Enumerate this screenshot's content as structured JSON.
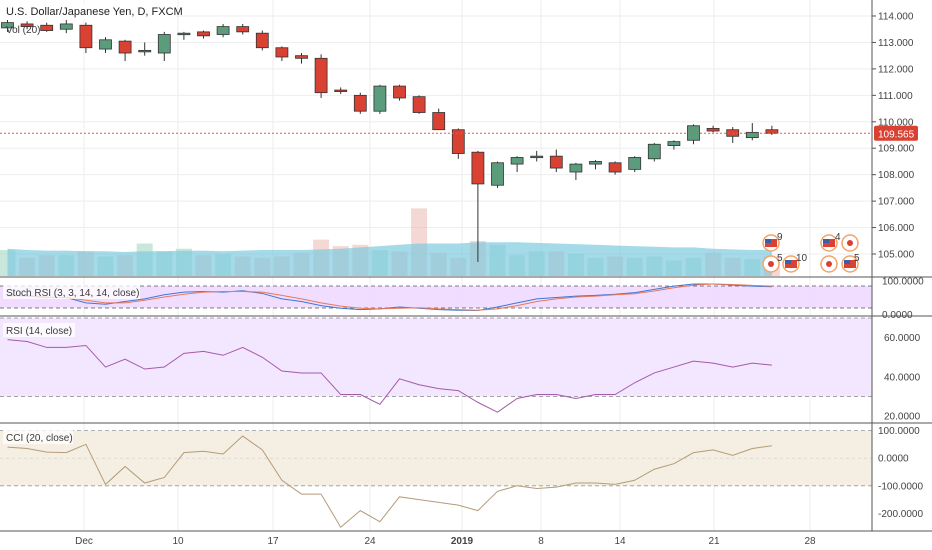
{
  "header": {
    "title": "U.S. Dollar/Japanese Yen, D, FXCM",
    "volume_label": "Vol (20)"
  },
  "price_tag": "109.565",
  "indicators": {
    "stoch_label": "Stoch RSI (3, 3, 14, 14, close)",
    "rsi_label": "RSI (14, close)",
    "cci_label": "CCI (20, close)"
  },
  "events": {
    "badge_9": "9",
    "badge_5a": "5",
    "badge_10": "10",
    "badge_4": "4",
    "badge_5b": "5"
  },
  "colors": {
    "up": "#5b9c7d",
    "down": "#d94133",
    "price_line": "#e05b4b",
    "volume": "#7fcbe0",
    "stoch_bg": "#efd9ff",
    "rsi_bg": "#f3e6ff",
    "cci_bg": "#f4efe2"
  },
  "chart_data": [
    {
      "type": "candlestick",
      "title": "U.S. Dollar/Japanese Yen, D, FXCM",
      "ylim": [
        104.3,
        114.4
      ],
      "y_ticks": [
        "114.000",
        "113.000",
        "112.000",
        "111.000",
        "110.000",
        "109.000",
        "108.000",
        "107.000",
        "106.000",
        "105.000"
      ],
      "x_ticks": [
        "Dec",
        "10",
        "17",
        "24",
        "2019",
        "8",
        "14",
        "21",
        "28"
      ],
      "last_price": 109.565,
      "candles": [
        {
          "o": 113.55,
          "h": 113.85,
          "l": 113.4,
          "c": 113.75
        },
        {
          "o": 113.7,
          "h": 113.8,
          "l": 113.5,
          "c": 113.6
        },
        {
          "o": 113.65,
          "h": 113.75,
          "l": 113.4,
          "c": 113.45
        },
        {
          "o": 113.5,
          "h": 113.85,
          "l": 113.35,
          "c": 113.7
        },
        {
          "o": 113.65,
          "h": 113.75,
          "l": 112.6,
          "c": 112.8
        },
        {
          "o": 112.75,
          "h": 113.2,
          "l": 112.6,
          "c": 113.1
        },
        {
          "o": 113.05,
          "h": 113.1,
          "l": 112.3,
          "c": 112.6
        },
        {
          "o": 112.65,
          "h": 113.0,
          "l": 112.5,
          "c": 112.7
        },
        {
          "o": 112.6,
          "h": 113.4,
          "l": 112.3,
          "c": 113.3
        },
        {
          "o": 113.3,
          "h": 113.4,
          "l": 113.1,
          "c": 113.35
        },
        {
          "o": 113.4,
          "h": 113.45,
          "l": 113.15,
          "c": 113.25
        },
        {
          "o": 113.3,
          "h": 113.7,
          "l": 113.2,
          "c": 113.6
        },
        {
          "o": 113.6,
          "h": 113.7,
          "l": 113.3,
          "c": 113.4
        },
        {
          "o": 113.35,
          "h": 113.45,
          "l": 112.7,
          "c": 112.8
        },
        {
          "o": 112.8,
          "h": 112.85,
          "l": 112.3,
          "c": 112.45
        },
        {
          "o": 112.5,
          "h": 112.6,
          "l": 112.2,
          "c": 112.4
        },
        {
          "o": 112.4,
          "h": 112.55,
          "l": 110.9,
          "c": 111.1
        },
        {
          "o": 111.2,
          "h": 111.3,
          "l": 111.05,
          "c": 111.15
        },
        {
          "o": 111.0,
          "h": 111.1,
          "l": 110.3,
          "c": 110.4
        },
        {
          "o": 110.4,
          "h": 111.4,
          "l": 110.3,
          "c": 111.35
        },
        {
          "o": 111.35,
          "h": 111.4,
          "l": 110.8,
          "c": 110.9
        },
        {
          "o": 110.95,
          "h": 111.0,
          "l": 110.3,
          "c": 110.35
        },
        {
          "o": 110.35,
          "h": 110.5,
          "l": 109.7,
          "c": 109.7
        },
        {
          "o": 109.7,
          "h": 109.75,
          "l": 108.6,
          "c": 108.8
        },
        {
          "o": 108.85,
          "h": 108.9,
          "l": 104.7,
          "c": 107.65
        },
        {
          "o": 107.6,
          "h": 108.5,
          "l": 107.5,
          "c": 108.45
        },
        {
          "o": 108.4,
          "h": 108.7,
          "l": 108.1,
          "c": 108.65
        },
        {
          "o": 108.65,
          "h": 108.9,
          "l": 108.5,
          "c": 108.7
        },
        {
          "o": 108.7,
          "h": 108.95,
          "l": 108.1,
          "c": 108.25
        },
        {
          "o": 108.1,
          "h": 108.45,
          "l": 107.8,
          "c": 108.4
        },
        {
          "o": 108.4,
          "h": 108.55,
          "l": 108.2,
          "c": 108.5
        },
        {
          "o": 108.45,
          "h": 108.5,
          "l": 108.0,
          "c": 108.1
        },
        {
          "o": 108.2,
          "h": 108.7,
          "l": 108.1,
          "c": 108.65
        },
        {
          "o": 108.6,
          "h": 109.2,
          "l": 108.5,
          "c": 109.15
        },
        {
          "o": 109.1,
          "h": 109.3,
          "l": 108.95,
          "c": 109.25
        },
        {
          "o": 109.3,
          "h": 109.9,
          "l": 109.15,
          "c": 109.85
        },
        {
          "o": 109.75,
          "h": 109.85,
          "l": 109.6,
          "c": 109.65
        },
        {
          "o": 109.7,
          "h": 109.8,
          "l": 109.2,
          "c": 109.45
        },
        {
          "o": 109.4,
          "h": 109.95,
          "l": 109.3,
          "c": 109.6
        },
        {
          "o": 109.7,
          "h": 109.85,
          "l": 109.5,
          "c": 109.565
        }
      ],
      "volume": [
        2.0,
        1.4,
        1.6,
        1.6,
        1.9,
        1.5,
        1.6,
        2.5,
        1.9,
        2.1,
        1.6,
        1.7,
        1.5,
        1.4,
        1.5,
        1.8,
        2.8,
        2.3,
        2.4,
        2.0,
        1.9,
        5.2,
        1.8,
        1.4,
        2.7,
        2.4,
        1.6,
        1.9,
        1.9,
        1.7,
        1.4,
        1.5,
        1.4,
        1.5,
        1.2,
        1.4,
        1.8,
        1.4,
        1.3,
        1.5
      ],
      "volume_ma": [
        2.1,
        2.0,
        1.95,
        1.95,
        1.9,
        1.9,
        1.85,
        1.9,
        1.9,
        1.95,
        1.95,
        1.9,
        1.95,
        2.0,
        2.0,
        2.0,
        2.05,
        2.1,
        2.2,
        2.3,
        2.4,
        2.5,
        2.5,
        2.5,
        2.6,
        2.6,
        2.6,
        2.55,
        2.5,
        2.45,
        2.4,
        2.35,
        2.3,
        2.25,
        2.2,
        2.2,
        2.1,
        2.05,
        2.0,
        2.0
      ]
    },
    {
      "type": "line",
      "title": "Stoch RSI (3, 3, 14, 14, close)",
      "ylim": [
        0,
        100
      ],
      "y_ticks": [
        "100.0000",
        "0.0000"
      ],
      "series": [
        {
          "values": [
            60,
            55,
            50,
            50,
            30,
            25,
            35,
            45,
            60,
            70,
            72,
            70,
            75,
            65,
            45,
            35,
            20,
            10,
            5,
            8,
            15,
            10,
            5,
            3,
            2,
            15,
            30,
            45,
            50,
            55,
            58,
            62,
            68,
            80,
            92,
            100,
            100,
            96,
            92,
            90
          ]
        },
        {
          "values": [
            55,
            58,
            52,
            50,
            40,
            30,
            30,
            40,
            52,
            62,
            70,
            72,
            72,
            70,
            58,
            45,
            30,
            18,
            10,
            8,
            10,
            12,
            8,
            5,
            3,
            8,
            20,
            35,
            45,
            52,
            55,
            60,
            64,
            74,
            86,
            96,
            100,
            98,
            95,
            92
          ]
        }
      ]
    },
    {
      "type": "line",
      "title": "RSI (14, close)",
      "ylim": [
        17,
        70
      ],
      "y_ticks": [
        "60.0000",
        "40.0000",
        "20.0000"
      ],
      "series": [
        {
          "values": [
            59,
            58,
            55,
            55,
            56,
            45,
            49,
            44,
            45,
            52,
            53,
            51,
            55,
            50,
            43,
            42,
            42,
            31,
            31,
            26,
            39,
            36,
            34,
            33,
            27,
            22,
            29,
            31,
            31,
            29,
            31,
            31,
            37,
            42,
            45,
            48,
            47,
            45,
            47,
            46
          ]
        }
      ]
    },
    {
      "type": "line",
      "title": "CCI (20, close)",
      "ylim": [
        -260,
        120
      ],
      "y_ticks": [
        "100.0000",
        "0.0000",
        "-100.0000",
        "-200.0000"
      ],
      "series": [
        {
          "values": [
            40,
            35,
            22,
            20,
            50,
            -95,
            -30,
            -90,
            -70,
            20,
            25,
            15,
            80,
            30,
            -80,
            -130,
            -130,
            -250,
            -190,
            -230,
            -140,
            -150,
            -160,
            -170,
            -190,
            -120,
            -100,
            -110,
            -105,
            -90,
            -90,
            -95,
            -80,
            -40,
            -20,
            20,
            30,
            10,
            35,
            45
          ]
        }
      ]
    }
  ]
}
